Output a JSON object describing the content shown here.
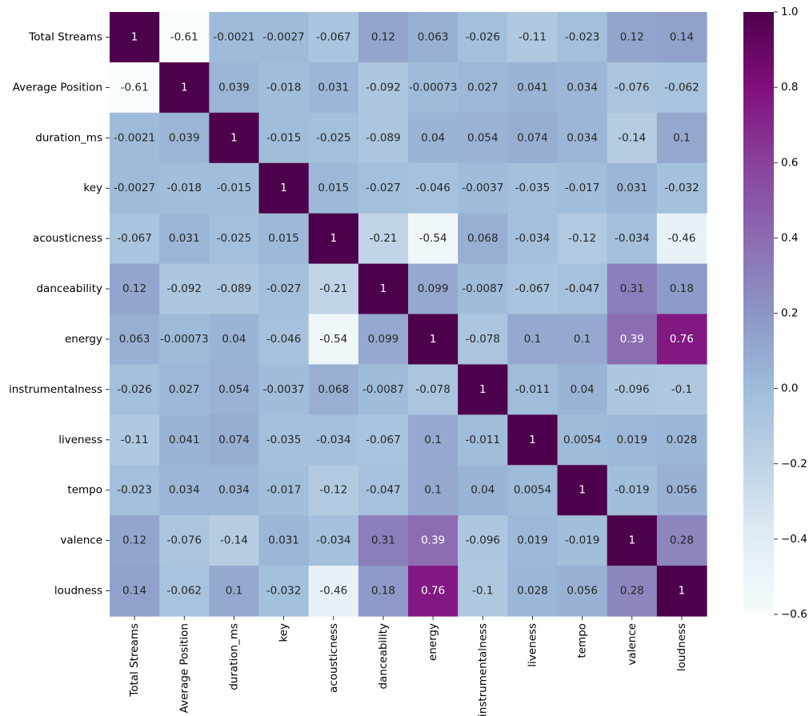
{
  "chart_data": {
    "type": "heatmap",
    "title": "",
    "xlabel": "",
    "ylabel": "",
    "labels": [
      "Total Streams",
      "Average Position",
      "duration_ms",
      "key",
      "acousticness",
      "danceability",
      "energy",
      "instrumentalness",
      "liveness",
      "tempo",
      "valence",
      "loudness"
    ],
    "matrix": [
      [
        1,
        -0.61,
        -0.0021,
        -0.0027,
        -0.067,
        0.12,
        0.063,
        -0.026,
        -0.11,
        -0.023,
        0.12,
        0.14
      ],
      [
        -0.61,
        1,
        0.039,
        -0.018,
        0.031,
        -0.092,
        -0.00073,
        0.027,
        0.041,
        0.034,
        -0.076,
        -0.062
      ],
      [
        -0.0021,
        0.039,
        1,
        -0.015,
        -0.025,
        -0.089,
        0.04,
        0.054,
        0.074,
        0.034,
        -0.14,
        0.1
      ],
      [
        -0.0027,
        -0.018,
        -0.015,
        1,
        0.015,
        -0.027,
        -0.046,
        -0.0037,
        -0.035,
        -0.017,
        0.031,
        -0.032
      ],
      [
        -0.067,
        0.031,
        -0.025,
        0.015,
        1,
        -0.21,
        -0.54,
        0.068,
        -0.034,
        -0.12,
        -0.034,
        -0.46
      ],
      [
        0.12,
        -0.092,
        -0.089,
        -0.027,
        -0.21,
        1,
        0.099,
        -0.0087,
        -0.067,
        -0.047,
        0.31,
        0.18
      ],
      [
        0.063,
        -0.00073,
        0.04,
        -0.046,
        -0.54,
        0.099,
        1,
        -0.078,
        0.1,
        0.1,
        0.39,
        0.76
      ],
      [
        -0.026,
        0.027,
        0.054,
        -0.0037,
        0.068,
        -0.0087,
        -0.078,
        1,
        -0.011,
        0.04,
        -0.096,
        -0.1
      ],
      [
        -0.11,
        0.041,
        0.074,
        -0.035,
        -0.034,
        -0.067,
        0.1,
        -0.011,
        1,
        0.0054,
        0.019,
        0.028
      ],
      [
        -0.023,
        0.034,
        0.034,
        -0.017,
        -0.12,
        -0.047,
        0.1,
        0.04,
        0.0054,
        1,
        -0.019,
        0.056
      ],
      [
        0.12,
        -0.076,
        -0.14,
        0.031,
        -0.034,
        0.31,
        0.39,
        -0.096,
        0.019,
        -0.019,
        1,
        0.28
      ],
      [
        0.14,
        -0.062,
        0.1,
        -0.032,
        -0.46,
        0.18,
        0.76,
        -0.1,
        0.028,
        0.056,
        0.28,
        1
      ]
    ],
    "colormap": "BuPu",
    "colormap_stops": [
      "#f7fcfd",
      "#e0ecf4",
      "#bfd3e6",
      "#9ebcda",
      "#8c96c6",
      "#8c6bb1",
      "#88419d",
      "#810f7c",
      "#4d004b"
    ],
    "vmin": -0.6,
    "vmax": 1.0,
    "colorbar_ticks": [
      1.0,
      0.8,
      0.6,
      0.4,
      0.2,
      0.0,
      -0.2,
      -0.4,
      -0.6
    ],
    "colorbar_tick_labels": [
      "1.0",
      "0.8",
      "0.6",
      "0.4",
      "0.2",
      "0.0",
      "−0.2",
      "−0.4",
      "−0.6"
    ],
    "annotation_dark_color": "#262626",
    "annotation_light_color": "#ffffff"
  }
}
